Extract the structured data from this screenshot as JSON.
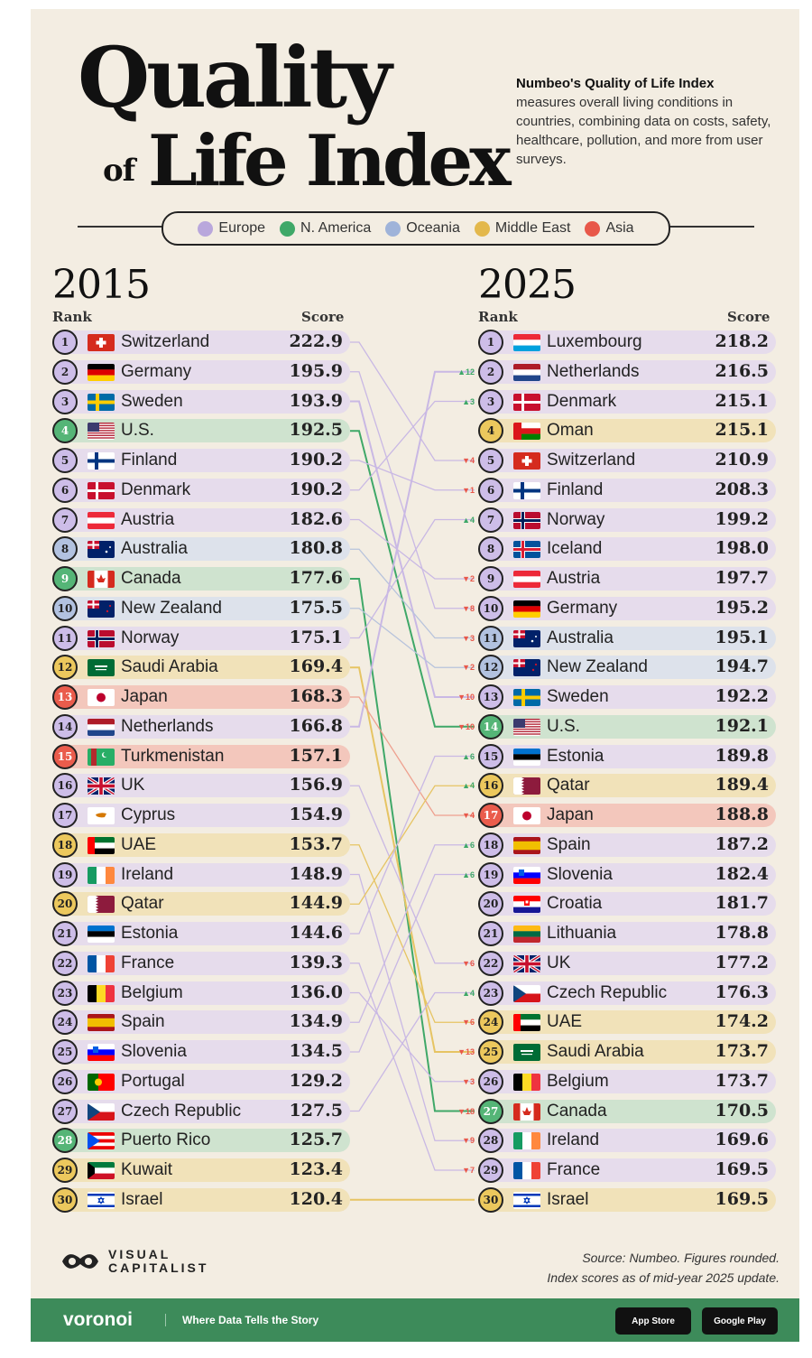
{
  "title_line1": "Quality",
  "title_of": "of",
  "title_line2": "Life Index",
  "description_heading": "Numbeo's Quality of Life Index",
  "description": "measures overall living conditions in countries, combining data on costs, safety, healthcare, pollution, and more from user surveys.",
  "legend": [
    {
      "key": "Europe",
      "label": "Europe",
      "color": "#b9a7dc"
    },
    {
      "key": "N. America",
      "label": "N. America",
      "color": "#3fa868"
    },
    {
      "key": "Oceania",
      "label": "Oceania",
      "color": "#9fb3d9"
    },
    {
      "key": "Middle East",
      "label": "Middle East",
      "color": "#e3b84c"
    },
    {
      "key": "Asia",
      "label": "Asia",
      "color": "#e8584a"
    }
  ],
  "row_colors": {
    "Europe": "#e6dcec",
    "N. America": "#cfe3cf",
    "Oceania": "#dde2eb",
    "Middle East": "#f1e2b9",
    "Asia": "#f3c7bc"
  },
  "badge_colors": {
    "Europe": "#cdbde8",
    "N. America": "#55b577",
    "Oceania": "#b2c2e0",
    "Middle East": "#ecc85d",
    "Asia": "#ea5c4c"
  },
  "change_colors": {
    "up": "#3fa868",
    "down": "#e8584a"
  },
  "headers": {
    "rank": "Rank",
    "score": "Score"
  },
  "source_line1": "Source: Numbeo. Figures rounded.",
  "source_line2": "Index scores as of mid-year 2025 update.",
  "brand": {
    "vc_line1": "VISUAL",
    "vc_line2": "CAPITALIST",
    "voronoi": "voronoi",
    "tagline": "Where Data Tells the Story",
    "app_store": "App Store",
    "google_play": "Google Play"
  },
  "chart_data": {
    "type": "table",
    "title": "Quality of Life Index",
    "years": [
      "2015",
      "2025"
    ],
    "table_2015": [
      {
        "rank": 1,
        "country": "Switzerland",
        "score": 222.9,
        "score_text": "222.9",
        "region": "Europe",
        "flag": "ch"
      },
      {
        "rank": 2,
        "country": "Germany",
        "score": 195.9,
        "score_text": "195.9",
        "region": "Europe",
        "flag": "de"
      },
      {
        "rank": 3,
        "country": "Sweden",
        "score": 193.9,
        "score_text": "193.9",
        "region": "Europe",
        "flag": "se"
      },
      {
        "rank": 4,
        "country": "U.S.",
        "score": 192.5,
        "score_text": "192.5",
        "region": "N. America",
        "flag": "us"
      },
      {
        "rank": 5,
        "country": "Finland",
        "score": 190.2,
        "score_text": "190.2",
        "region": "Europe",
        "flag": "fi"
      },
      {
        "rank": 6,
        "country": "Denmark",
        "score": 190.2,
        "score_text": "190.2",
        "region": "Europe",
        "flag": "dk"
      },
      {
        "rank": 7,
        "country": "Austria",
        "score": 182.6,
        "score_text": "182.6",
        "region": "Europe",
        "flag": "at"
      },
      {
        "rank": 8,
        "country": "Australia",
        "score": 180.8,
        "score_text": "180.8",
        "region": "Oceania",
        "flag": "au"
      },
      {
        "rank": 9,
        "country": "Canada",
        "score": 177.6,
        "score_text": "177.6",
        "region": "N. America",
        "flag": "ca"
      },
      {
        "rank": 10,
        "country": "New Zealand",
        "score": 175.5,
        "score_text": "175.5",
        "region": "Oceania",
        "flag": "nz"
      },
      {
        "rank": 11,
        "country": "Norway",
        "score": 175.1,
        "score_text": "175.1",
        "region": "Europe",
        "flag": "no"
      },
      {
        "rank": 12,
        "country": "Saudi Arabia",
        "score": 169.4,
        "score_text": "169.4",
        "region": "Middle East",
        "flag": "sa"
      },
      {
        "rank": 13,
        "country": "Japan",
        "score": 168.3,
        "score_text": "168.3",
        "region": "Asia",
        "flag": "jp"
      },
      {
        "rank": 14,
        "country": "Netherlands",
        "score": 166.8,
        "score_text": "166.8",
        "region": "Europe",
        "flag": "nl"
      },
      {
        "rank": 15,
        "country": "Turkmenistan",
        "score": 157.1,
        "score_text": "157.1",
        "region": "Asia",
        "flag": "tm"
      },
      {
        "rank": 16,
        "country": "UK",
        "score": 156.9,
        "score_text": "156.9",
        "region": "Europe",
        "flag": "gb"
      },
      {
        "rank": 17,
        "country": "Cyprus",
        "score": 154.9,
        "score_text": "154.9",
        "region": "Europe",
        "flag": "cy"
      },
      {
        "rank": 18,
        "country": "UAE",
        "score": 153.7,
        "score_text": "153.7",
        "region": "Middle East",
        "flag": "ae"
      },
      {
        "rank": 19,
        "country": "Ireland",
        "score": 148.9,
        "score_text": "148.9",
        "region": "Europe",
        "flag": "ie"
      },
      {
        "rank": 20,
        "country": "Qatar",
        "score": 144.9,
        "score_text": "144.9",
        "region": "Middle East",
        "flag": "qa"
      },
      {
        "rank": 21,
        "country": "Estonia",
        "score": 144.6,
        "score_text": "144.6",
        "region": "Europe",
        "flag": "ee"
      },
      {
        "rank": 22,
        "country": "France",
        "score": 139.3,
        "score_text": "139.3",
        "region": "Europe",
        "flag": "fr"
      },
      {
        "rank": 23,
        "country": "Belgium",
        "score": 136.0,
        "score_text": "136.0",
        "region": "Europe",
        "flag": "be"
      },
      {
        "rank": 24,
        "country": "Spain",
        "score": 134.9,
        "score_text": "134.9",
        "region": "Europe",
        "flag": "es"
      },
      {
        "rank": 25,
        "country": "Slovenia",
        "score": 134.5,
        "score_text": "134.5",
        "region": "Europe",
        "flag": "si"
      },
      {
        "rank": 26,
        "country": "Portugal",
        "score": 129.2,
        "score_text": "129.2",
        "region": "Europe",
        "flag": "pt"
      },
      {
        "rank": 27,
        "country": "Czech Republic",
        "score": 127.5,
        "score_text": "127.5",
        "region": "Europe",
        "flag": "cz"
      },
      {
        "rank": 28,
        "country": "Puerto Rico",
        "score": 125.7,
        "score_text": "125.7",
        "region": "N. America",
        "flag": "pr"
      },
      {
        "rank": 29,
        "country": "Kuwait",
        "score": 123.4,
        "score_text": "123.4",
        "region": "Middle East",
        "flag": "kw"
      },
      {
        "rank": 30,
        "country": "Israel",
        "score": 120.4,
        "score_text": "120.4",
        "region": "Middle East",
        "flag": "il"
      }
    ],
    "table_2025": [
      {
        "rank": 1,
        "country": "Luxembourg",
        "score": 218.2,
        "score_text": "218.2",
        "region": "Europe",
        "flag": "lu",
        "change": ""
      },
      {
        "rank": 2,
        "country": "Netherlands",
        "score": 216.5,
        "score_text": "216.5",
        "region": "Europe",
        "flag": "nl",
        "change": "▲12"
      },
      {
        "rank": 3,
        "country": "Denmark",
        "score": 215.1,
        "score_text": "215.1",
        "region": "Europe",
        "flag": "dk",
        "change": "▲3"
      },
      {
        "rank": 4,
        "country": "Oman",
        "score": 215.1,
        "score_text": "215.1",
        "region": "Middle East",
        "flag": "om",
        "change": ""
      },
      {
        "rank": 5,
        "country": "Switzerland",
        "score": 210.9,
        "score_text": "210.9",
        "region": "Europe",
        "flag": "ch",
        "change": "▼4"
      },
      {
        "rank": 6,
        "country": "Finland",
        "score": 208.3,
        "score_text": "208.3",
        "region": "Europe",
        "flag": "fi",
        "change": "▼1"
      },
      {
        "rank": 7,
        "country": "Norway",
        "score": 199.2,
        "score_text": "199.2",
        "region": "Europe",
        "flag": "no",
        "change": "▲4"
      },
      {
        "rank": 8,
        "country": "Iceland",
        "score": 198.0,
        "score_text": "198.0",
        "region": "Europe",
        "flag": "is",
        "change": ""
      },
      {
        "rank": 9,
        "country": "Austria",
        "score": 197.7,
        "score_text": "197.7",
        "region": "Europe",
        "flag": "at",
        "change": "▼2"
      },
      {
        "rank": 10,
        "country": "Germany",
        "score": 195.2,
        "score_text": "195.2",
        "region": "Europe",
        "flag": "de",
        "change": "▼8"
      },
      {
        "rank": 11,
        "country": "Australia",
        "score": 195.1,
        "score_text": "195.1",
        "region": "Oceania",
        "flag": "au",
        "change": "▼3"
      },
      {
        "rank": 12,
        "country": "New Zealand",
        "score": 194.7,
        "score_text": "194.7",
        "region": "Oceania",
        "flag": "nz",
        "change": "▼2"
      },
      {
        "rank": 13,
        "country": "Sweden",
        "score": 192.2,
        "score_text": "192.2",
        "region": "Europe",
        "flag": "se",
        "change": "▼10"
      },
      {
        "rank": 14,
        "country": "U.S.",
        "score": 192.1,
        "score_text": "192.1",
        "region": "N. America",
        "flag": "us",
        "change": "▼10"
      },
      {
        "rank": 15,
        "country": "Estonia",
        "score": 189.8,
        "score_text": "189.8",
        "region": "Europe",
        "flag": "ee",
        "change": "▲6"
      },
      {
        "rank": 16,
        "country": "Qatar",
        "score": 189.4,
        "score_text": "189.4",
        "region": "Middle East",
        "flag": "qa",
        "change": "▲4"
      },
      {
        "rank": 17,
        "country": "Japan",
        "score": 188.8,
        "score_text": "188.8",
        "region": "Asia",
        "flag": "jp",
        "change": "▼4"
      },
      {
        "rank": 18,
        "country": "Spain",
        "score": 187.2,
        "score_text": "187.2",
        "region": "Europe",
        "flag": "es",
        "change": "▲6"
      },
      {
        "rank": 19,
        "country": "Slovenia",
        "score": 182.4,
        "score_text": "182.4",
        "region": "Europe",
        "flag": "si",
        "change": "▲6"
      },
      {
        "rank": 20,
        "country": "Croatia",
        "score": 181.7,
        "score_text": "181.7",
        "region": "Europe",
        "flag": "hr",
        "change": ""
      },
      {
        "rank": 21,
        "country": "Lithuania",
        "score": 178.8,
        "score_text": "178.8",
        "region": "Europe",
        "flag": "lt",
        "change": ""
      },
      {
        "rank": 22,
        "country": "UK",
        "score": 177.2,
        "score_text": "177.2",
        "region": "Europe",
        "flag": "gb",
        "change": "▼6"
      },
      {
        "rank": 23,
        "country": "Czech Republic",
        "score": 176.3,
        "score_text": "176.3",
        "region": "Europe",
        "flag": "cz",
        "change": "▲4"
      },
      {
        "rank": 24,
        "country": "UAE",
        "score": 174.2,
        "score_text": "174.2",
        "region": "Middle East",
        "flag": "ae",
        "change": "▼6"
      },
      {
        "rank": 25,
        "country": "Saudi Arabia",
        "score": 173.7,
        "score_text": "173.7",
        "region": "Middle East",
        "flag": "sa",
        "change": "▼13"
      },
      {
        "rank": 26,
        "country": "Belgium",
        "score": 173.7,
        "score_text": "173.7",
        "region": "Europe",
        "flag": "be",
        "change": "▼3"
      },
      {
        "rank": 27,
        "country": "Canada",
        "score": 170.5,
        "score_text": "170.5",
        "region": "N. America",
        "flag": "ca",
        "change": "▼18"
      },
      {
        "rank": 28,
        "country": "Ireland",
        "score": 169.6,
        "score_text": "169.6",
        "region": "Europe",
        "flag": "ie",
        "change": "▼9"
      },
      {
        "rank": 29,
        "country": "France",
        "score": 169.5,
        "score_text": "169.5",
        "region": "Europe",
        "flag": "fr",
        "change": "▼7"
      },
      {
        "rank": 30,
        "country": "Israel",
        "score": 169.5,
        "score_text": "169.5",
        "region": "Middle East",
        "flag": "il",
        "change": ""
      }
    ]
  }
}
